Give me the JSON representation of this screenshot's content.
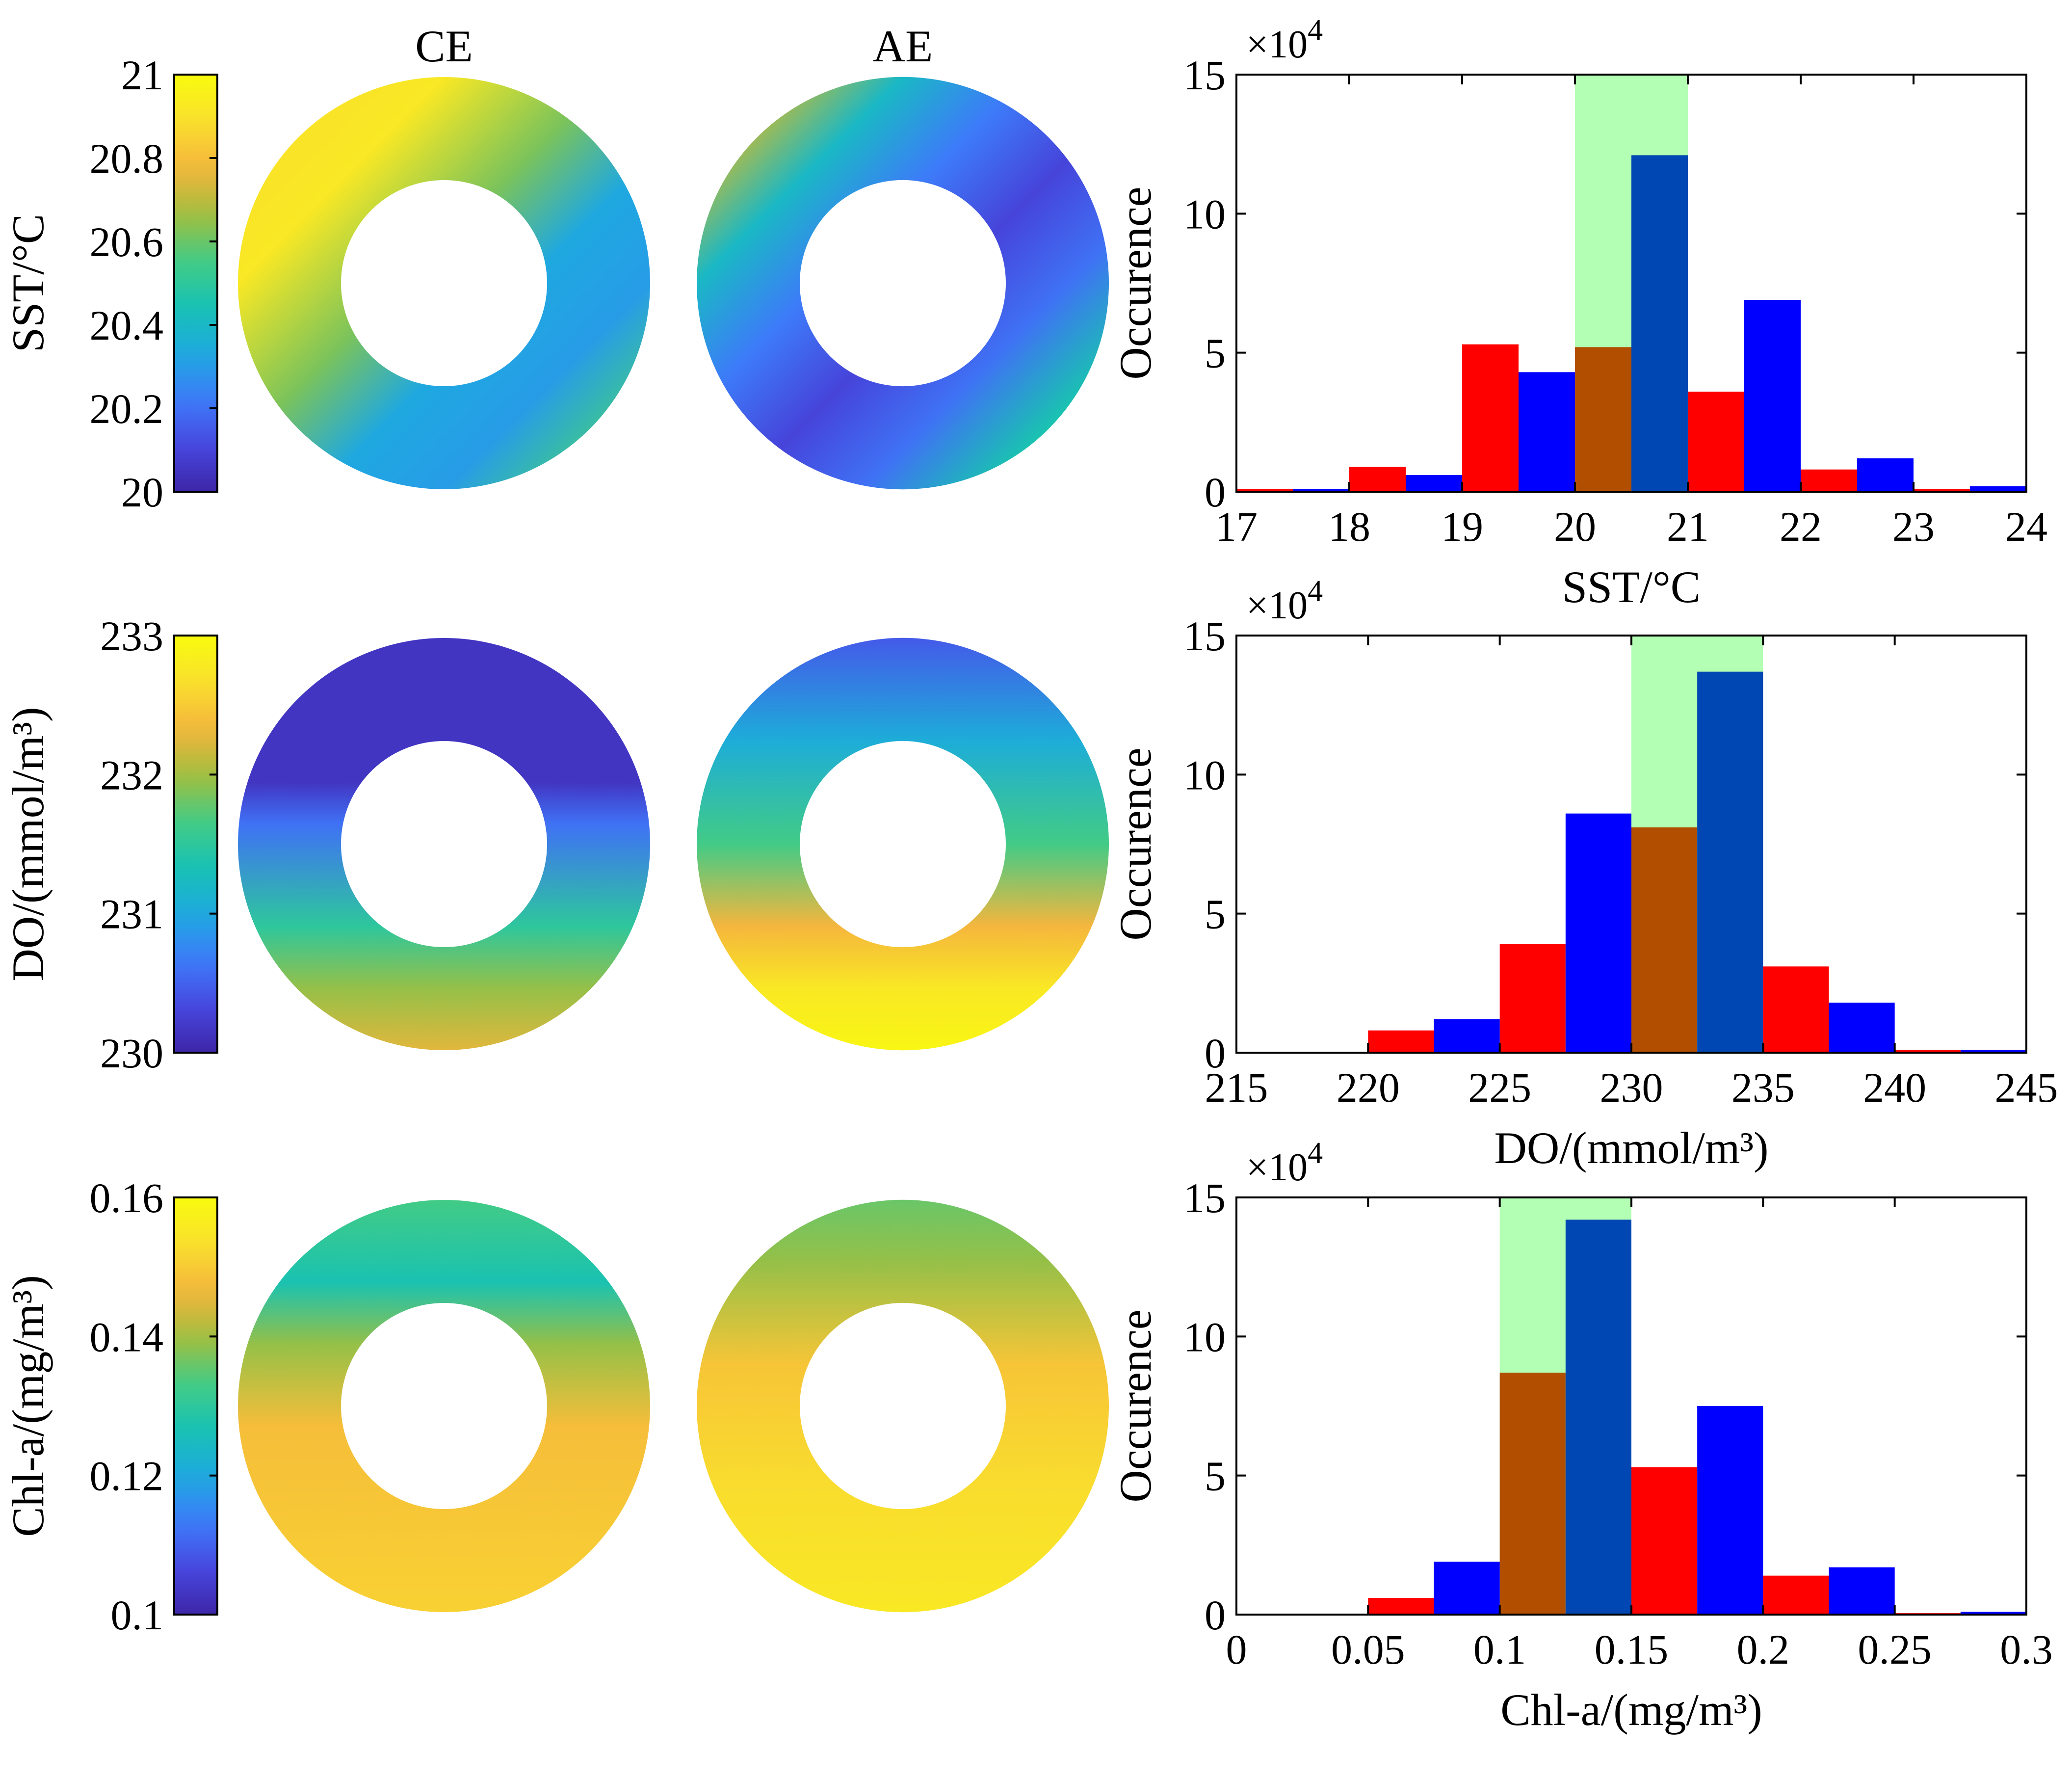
{
  "panel_titles": {
    "ce": "CE",
    "ae": "AE"
  },
  "colormap": [
    "#3e26a8",
    "#4747e0",
    "#3d7cfa",
    "#1ea9df",
    "#18c2b3",
    "#44cb84",
    "#a3be3d",
    "#f5b53d",
    "#f9e02d",
    "#f9fb0e"
  ],
  "bar_colors": {
    "red": "#ff0000",
    "blue": "#0000ff",
    "overlap": "#b24e00",
    "overlap_dark": "#0047b3",
    "band": "#b3ffb3"
  },
  "rows": [
    {
      "id": "sst",
      "colorbar": {
        "label": "SST/°C",
        "min": 20,
        "max": 21,
        "ticks": [
          "21",
          "20.8",
          "20.6",
          "20.4",
          "20.2",
          "20"
        ]
      },
      "ce_field": {
        "type": "ring-gradient",
        "stops": [
          [
            0.0,
            0.88
          ],
          [
            0.25,
            0.92
          ],
          [
            0.45,
            0.62
          ],
          [
            0.6,
            0.33
          ],
          [
            0.75,
            0.3
          ],
          [
            0.9,
            0.55
          ],
          [
            1.0,
            0.88
          ]
        ]
      },
      "ae_field": {
        "type": "ring-gradient",
        "stops": [
          [
            0.0,
            0.48
          ],
          [
            0.12,
            0.7
          ],
          [
            0.25,
            0.4
          ],
          [
            0.4,
            0.22
          ],
          [
            0.55,
            0.1
          ],
          [
            0.7,
            0.2
          ],
          [
            0.85,
            0.45
          ],
          [
            1.0,
            0.48
          ]
        ]
      }
    },
    {
      "id": "do",
      "colorbar": {
        "label": "DO/(mmol/m³)",
        "min": 230,
        "max": 233,
        "ticks": [
          "233",
          "232",
          "231",
          "230"
        ]
      },
      "ce_field": {
        "type": "vertical-gradient",
        "stops": [
          [
            0.0,
            0.05
          ],
          [
            0.35,
            0.05
          ],
          [
            0.45,
            0.2
          ],
          [
            0.7,
            0.5
          ],
          [
            0.85,
            0.65
          ],
          [
            1.0,
            0.75
          ]
        ]
      },
      "ae_field": {
        "type": "vertical-gradient",
        "stops": [
          [
            0.0,
            0.15
          ],
          [
            0.25,
            0.35
          ],
          [
            0.5,
            0.55
          ],
          [
            0.7,
            0.78
          ],
          [
            0.85,
            0.92
          ],
          [
            1.0,
            0.98
          ]
        ]
      }
    },
    {
      "id": "chl",
      "colorbar": {
        "label": "Chl-a/(mg/m³)",
        "min": 0.1,
        "max": 0.16,
        "ticks": [
          "0.16",
          "0.14",
          "0.12",
          "0.1"
        ]
      },
      "ce_field": {
        "type": "vertical-gradient",
        "stops": [
          [
            0.0,
            0.55
          ],
          [
            0.2,
            0.45
          ],
          [
            0.35,
            0.65
          ],
          [
            0.55,
            0.8
          ],
          [
            1.0,
            0.85
          ]
        ]
      },
      "ae_field": {
        "type": "vertical-gradient",
        "stops": [
          [
            0.0,
            0.6
          ],
          [
            0.15,
            0.65
          ],
          [
            0.4,
            0.82
          ],
          [
            0.7,
            0.88
          ],
          [
            1.0,
            0.92
          ]
        ]
      }
    }
  ],
  "chart_data": [
    {
      "type": "bar",
      "xlabel": "SST/°C",
      "ylabel": "Occurence",
      "multiplier": "×10^4",
      "xlim": [
        17,
        24
      ],
      "ylim": [
        0,
        15
      ],
      "xticks": [
        "17",
        "18",
        "19",
        "20",
        "21",
        "22",
        "23",
        "24"
      ],
      "yticks": [
        "0",
        "5",
        "10",
        "15"
      ],
      "highlight_band": [
        20,
        21
      ],
      "series": [
        {
          "color": "red",
          "bars": [
            [
              17.0,
              17.5,
              0.1
            ],
            [
              18.0,
              18.5,
              0.9
            ],
            [
              19.0,
              19.5,
              5.3
            ],
            [
              20.0,
              20.5,
              5.2
            ],
            [
              21.0,
              21.5,
              3.6
            ],
            [
              22.0,
              22.5,
              0.8
            ],
            [
              23.0,
              23.5,
              0.1
            ]
          ]
        },
        {
          "color": "blue",
          "bars": [
            [
              17.5,
              18.0,
              0.1
            ],
            [
              18.5,
              19.0,
              0.6
            ],
            [
              19.5,
              20.0,
              4.3
            ],
            [
              20.5,
              21.0,
              12.1
            ],
            [
              21.5,
              22.0,
              6.9
            ],
            [
              22.5,
              23.0,
              1.2
            ],
            [
              23.5,
              24.0,
              0.2
            ]
          ]
        }
      ]
    },
    {
      "type": "bar",
      "xlabel": "DO/(mmol/m³)",
      "ylabel": "Occurence",
      "multiplier": "×10^4",
      "xlim": [
        215,
        245
      ],
      "ylim": [
        0,
        15
      ],
      "xticks": [
        "215",
        "220",
        "225",
        "230",
        "235",
        "240",
        "245"
      ],
      "yticks": [
        "0",
        "5",
        "10",
        "15"
      ],
      "highlight_band": [
        230,
        235
      ],
      "series": [
        {
          "color": "red",
          "bars": [
            [
              217.5,
              220.0,
              0.0
            ],
            [
              220.0,
              222.5,
              0.8
            ],
            [
              225.0,
              227.5,
              3.9
            ],
            [
              230.0,
              232.5,
              8.1
            ],
            [
              235.0,
              237.5,
              3.1
            ],
            [
              240.0,
              242.5,
              0.1
            ]
          ]
        },
        {
          "color": "blue",
          "bars": [
            [
              222.5,
              225.0,
              1.2
            ],
            [
              227.5,
              230.0,
              8.6
            ],
            [
              232.5,
              235.0,
              13.7
            ],
            [
              237.5,
              240.0,
              1.8
            ],
            [
              242.5,
              245.0,
              0.1
            ]
          ]
        }
      ]
    },
    {
      "type": "bar",
      "xlabel": "Chl-a/(mg/m³)",
      "ylabel": "Occurence",
      "multiplier": "×10^4",
      "xlim": [
        0,
        0.3
      ],
      "ylim": [
        0,
        15
      ],
      "xticks": [
        "0",
        "0.05",
        "0.1",
        "0.15",
        "0.2",
        "0.25",
        "0.3"
      ],
      "yticks": [
        "0",
        "5",
        "10",
        "15"
      ],
      "highlight_band": [
        0.1,
        0.15
      ],
      "series": [
        {
          "color": "red",
          "bars": [
            [
              0.05,
              0.075,
              0.6
            ],
            [
              0.1,
              0.125,
              8.7
            ],
            [
              0.15,
              0.175,
              5.3
            ],
            [
              0.2,
              0.225,
              1.4
            ],
            [
              0.25,
              0.275,
              0.05
            ]
          ]
        },
        {
          "color": "blue",
          "bars": [
            [
              0.075,
              0.1,
              1.9
            ],
            [
              0.125,
              0.15,
              14.2
            ],
            [
              0.175,
              0.2,
              7.5
            ],
            [
              0.225,
              0.25,
              1.7
            ],
            [
              0.275,
              0.3,
              0.1
            ]
          ]
        }
      ]
    }
  ]
}
